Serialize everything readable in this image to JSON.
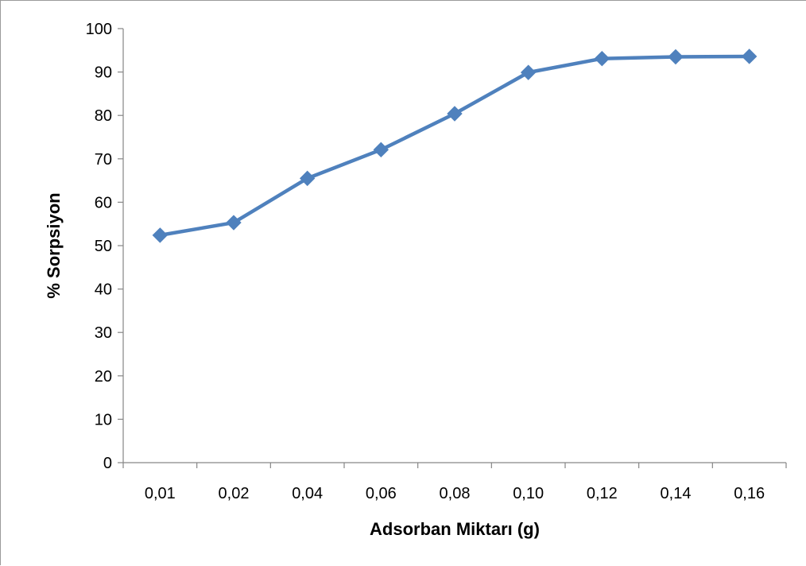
{
  "chart_data": {
    "type": "line",
    "xlabel": "Adsorban Miktarı (g)",
    "ylabel": "% Sorpsiyon",
    "categories": [
      "0,01",
      "0,02",
      "0,04",
      "0,06",
      "0,08",
      "0,10",
      "0,12",
      "0,14",
      "0,16"
    ],
    "series": [
      {
        "values": [
          52.4,
          55.3,
          65.5,
          72.1,
          80.4,
          89.9,
          93.1,
          93.5,
          93.6
        ]
      }
    ],
    "ylim": [
      0,
      100
    ],
    "yticks": [
      0,
      10,
      20,
      30,
      40,
      50,
      60,
      70,
      80,
      90,
      100
    ],
    "grid": false,
    "legend": "none",
    "line_color": "#4F81BD",
    "marker": "diamond"
  }
}
